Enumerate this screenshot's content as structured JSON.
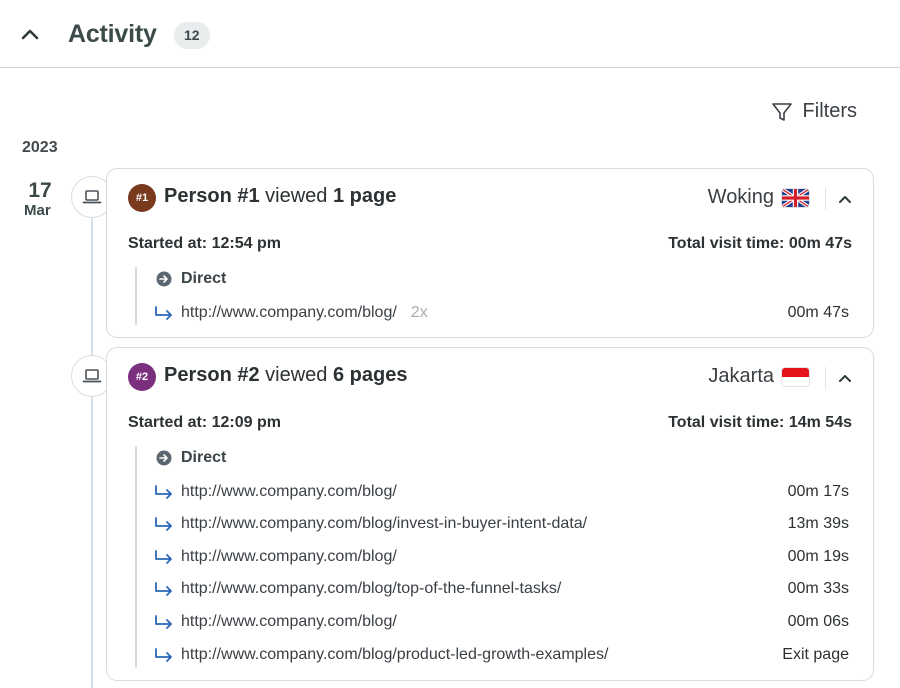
{
  "header": {
    "title": "Activity",
    "count": "12"
  },
  "filters": {
    "label": "Filters"
  },
  "year": "2023",
  "date": {
    "day": "17",
    "month": "Mar"
  },
  "sessions": [
    {
      "badge": "#1",
      "badge_color": "#7a3a1e",
      "person": "Person #1",
      "verb": " viewed ",
      "pages": "1 page",
      "location": "Woking",
      "flag": "uk",
      "started": "Started at: 12:54 pm",
      "total": "Total visit time: 00m 47s",
      "source": "Direct",
      "visits": [
        {
          "url": "http://www.company.com/blog/",
          "repeat": "2x",
          "duration": "00m 47s"
        }
      ]
    },
    {
      "badge": "#2",
      "badge_color": "#7a2f7f",
      "person": "Person #2",
      "verb": " viewed ",
      "pages": "6 pages",
      "location": "Jakarta",
      "flag": "id",
      "started": "Started at: 12:09 pm",
      "total": "Total visit time: 14m 54s",
      "source": "Direct",
      "visits": [
        {
          "url": "http://www.company.com/blog/",
          "duration": "00m 17s"
        },
        {
          "url": "http://www.company.com/blog/invest-in-buyer-intent-data/",
          "duration": "13m 39s"
        },
        {
          "url": "http://www.company.com/blog/",
          "duration": "00m 19s"
        },
        {
          "url": "http://www.company.com/blog/top-of-the-funnel-tasks/",
          "duration": "00m 33s"
        },
        {
          "url": "http://www.company.com/blog/",
          "duration": "00m 06s"
        },
        {
          "url": "http://www.company.com/blog/product-led-growth-examples/",
          "duration": "Exit page"
        }
      ]
    }
  ]
}
